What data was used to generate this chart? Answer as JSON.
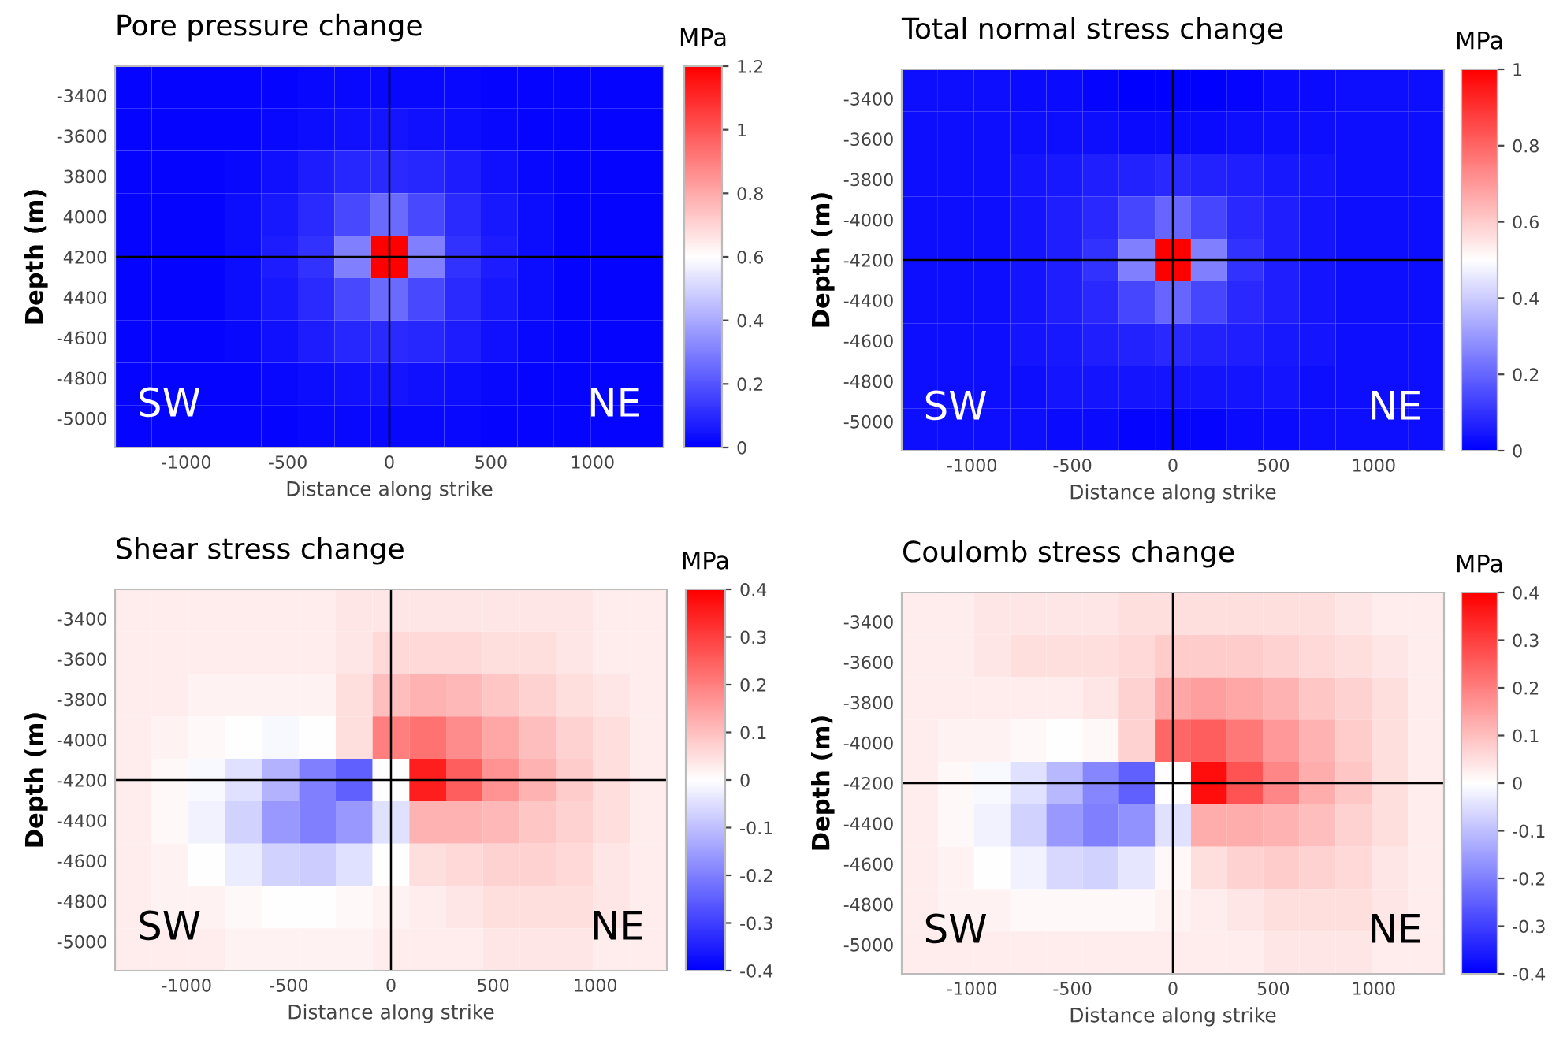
{
  "chart_data": [
    {
      "type": "heatmap",
      "title": "Pore pressure change",
      "xlabel": "Distance along strike",
      "ylabel": "Depth (m)",
      "clabel": "MPa",
      "x": [
        -1260,
        -1080,
        -900,
        -720,
        -540,
        -360,
        -180,
        0,
        180,
        360,
        540,
        720,
        900,
        1080,
        1260
      ],
      "y": [
        -3360,
        -3570,
        -3780,
        -3990,
        -4200,
        -4410,
        -4620,
        -4830,
        -5040
      ],
      "cells": [
        [
          0.01,
          0.01,
          0.01,
          0.01,
          0.01,
          0.02,
          0.02,
          0.02,
          0.02,
          0.02,
          0.01,
          0.01,
          0.01,
          0.01,
          0.01
        ],
        [
          0.01,
          0.01,
          0.01,
          0.01,
          0.02,
          0.03,
          0.04,
          0.05,
          0.04,
          0.03,
          0.02,
          0.01,
          0.01,
          0.01,
          0.01
        ],
        [
          0.01,
          0.01,
          0.01,
          0.02,
          0.04,
          0.07,
          0.09,
          0.1,
          0.09,
          0.07,
          0.04,
          0.02,
          0.01,
          0.01,
          0.01
        ],
        [
          0.01,
          0.01,
          0.01,
          0.03,
          0.06,
          0.1,
          0.17,
          0.25,
          0.17,
          0.1,
          0.06,
          0.03,
          0.01,
          0.01,
          0.01
        ],
        [
          0.01,
          0.01,
          0.01,
          0.03,
          0.07,
          0.12,
          0.3,
          1.2,
          0.3,
          0.12,
          0.07,
          0.03,
          0.01,
          0.01,
          0.01
        ],
        [
          0.01,
          0.01,
          0.01,
          0.03,
          0.06,
          0.1,
          0.17,
          0.25,
          0.17,
          0.1,
          0.06,
          0.03,
          0.01,
          0.01,
          0.01
        ],
        [
          0.01,
          0.01,
          0.01,
          0.02,
          0.04,
          0.07,
          0.09,
          0.1,
          0.09,
          0.07,
          0.04,
          0.02,
          0.01,
          0.01,
          0.01
        ],
        [
          0.01,
          0.01,
          0.01,
          0.01,
          0.02,
          0.03,
          0.04,
          0.05,
          0.04,
          0.03,
          0.02,
          0.01,
          0.01,
          0.01,
          0.01
        ],
        [
          0.01,
          0.01,
          0.01,
          0.01,
          0.01,
          0.02,
          0.02,
          0.02,
          0.02,
          0.02,
          0.01,
          0.01,
          0.01,
          0.01,
          0.01
        ]
      ],
      "xlim": [
        -1350,
        1350
      ],
      "ylim": [
        -5145,
        -3255
      ],
      "xticks": [
        -1000,
        -500,
        0,
        500,
        1000
      ],
      "yticks": [
        -3400,
        -3600,
        {
          "value": -3800,
          "label": "3800"
        },
        {
          "value": -4000,
          "label": "4000"
        },
        {
          "value": -4200,
          "label": "4200"
        },
        {
          "value": -4400,
          "label": "4400"
        },
        -4600,
        -4800,
        -5000
      ],
      "clim": [
        0,
        1.2
      ],
      "cticks": [
        0,
        0.2,
        0.4,
        0.6,
        0.8,
        1,
        1.2
      ],
      "ref_lines": [
        {
          "axis": "x",
          "value": 0,
          "color": "#000000"
        },
        {
          "axis": "y",
          "value": -4200,
          "color": "#000000"
        }
      ],
      "annotations": [
        "SW",
        "NE"
      ],
      "grid": false
    },
    {
      "type": "heatmap",
      "title": "Total normal stress change",
      "xlabel": "Distance along strike",
      "ylabel": "Depth (m)",
      "clabel": "MPa",
      "x": [
        -1260,
        -1080,
        -900,
        -720,
        -540,
        -360,
        -180,
        0,
        180,
        360,
        540,
        720,
        900,
        1080,
        1260
      ],
      "y": [
        -3360,
        -3570,
        -3780,
        -3990,
        -4200,
        -4410,
        -4620,
        -4830,
        -5040
      ],
      "cells": [
        [
          0.03,
          0.03,
          0.03,
          0.02,
          0.02,
          0.01,
          0.0,
          0.0,
          0.0,
          0.01,
          0.02,
          0.02,
          0.03,
          0.03,
          0.03
        ],
        [
          0.03,
          0.03,
          0.03,
          0.03,
          0.03,
          0.03,
          0.02,
          0.02,
          0.02,
          0.03,
          0.03,
          0.03,
          0.03,
          0.03,
          0.03
        ],
        [
          0.03,
          0.03,
          0.03,
          0.04,
          0.05,
          0.06,
          0.07,
          0.08,
          0.07,
          0.06,
          0.05,
          0.04,
          0.03,
          0.03,
          0.03
        ],
        [
          0.03,
          0.03,
          0.03,
          0.04,
          0.06,
          0.08,
          0.14,
          0.2,
          0.14,
          0.08,
          0.06,
          0.04,
          0.03,
          0.03,
          0.03
        ],
        [
          0.03,
          0.03,
          0.03,
          0.04,
          0.06,
          0.1,
          0.25,
          1.0,
          0.25,
          0.1,
          0.06,
          0.04,
          0.03,
          0.03,
          0.03
        ],
        [
          0.03,
          0.03,
          0.03,
          0.04,
          0.06,
          0.08,
          0.14,
          0.2,
          0.14,
          0.08,
          0.06,
          0.04,
          0.03,
          0.03,
          0.03
        ],
        [
          0.03,
          0.03,
          0.03,
          0.04,
          0.05,
          0.06,
          0.07,
          0.08,
          0.07,
          0.06,
          0.05,
          0.04,
          0.03,
          0.03,
          0.03
        ],
        [
          0.03,
          0.03,
          0.03,
          0.03,
          0.04,
          0.04,
          0.04,
          0.04,
          0.04,
          0.04,
          0.04,
          0.03,
          0.03,
          0.03,
          0.03
        ],
        [
          0.03,
          0.03,
          0.03,
          0.03,
          0.02,
          0.02,
          0.01,
          0.01,
          0.01,
          0.02,
          0.02,
          0.03,
          0.03,
          0.03,
          0.03
        ]
      ],
      "xlim": [
        -1350,
        1350
      ],
      "ylim": [
        -5145,
        -3255
      ],
      "xticks": [
        -1000,
        -500,
        0,
        500,
        1000
      ],
      "yticks": [
        -3400,
        -3600,
        -3800,
        -4000,
        -4200,
        -4400,
        -4600,
        -4800,
        -5000
      ],
      "clim": [
        0,
        1
      ],
      "cticks": [
        0,
        0.2,
        0.4,
        0.6,
        0.8,
        1
      ],
      "ref_lines": [
        {
          "axis": "x",
          "value": 0,
          "color": "#000000"
        },
        {
          "axis": "y",
          "value": -4200,
          "color": "#000000"
        }
      ],
      "annotations": [
        "SW",
        "NE"
      ],
      "grid": false
    },
    {
      "type": "heatmap",
      "title": "Shear stress change",
      "xlabel": "Distance along strike",
      "ylabel": "Depth (m)",
      "clabel": "MPa",
      "x": [
        -1260,
        -1080,
        -900,
        -720,
        -540,
        -360,
        -180,
        0,
        180,
        360,
        540,
        720,
        900,
        1080,
        1260
      ],
      "y": [
        -3360,
        -3570,
        -3780,
        -3990,
        -4200,
        -4410,
        -4620,
        -4830,
        -5040
      ],
      "cells": [
        [
          0.03,
          0.03,
          0.03,
          0.03,
          0.03,
          0.03,
          0.04,
          0.04,
          0.04,
          0.04,
          0.04,
          0.04,
          0.04,
          0.03,
          0.03
        ],
        [
          0.03,
          0.03,
          0.03,
          0.03,
          0.03,
          0.03,
          0.04,
          0.06,
          0.06,
          0.06,
          0.05,
          0.05,
          0.04,
          0.03,
          0.03
        ],
        [
          0.03,
          0.03,
          0.02,
          0.02,
          0.02,
          0.02,
          0.05,
          0.1,
          0.12,
          0.11,
          0.09,
          0.07,
          0.05,
          0.04,
          0.03
        ],
        [
          0.03,
          0.02,
          0.01,
          0.0,
          -0.01,
          0.0,
          0.05,
          0.2,
          0.22,
          0.18,
          0.14,
          0.1,
          0.07,
          0.05,
          0.03
        ],
        [
          0.03,
          0.01,
          -0.01,
          -0.05,
          -0.12,
          -0.2,
          -0.25,
          0.0,
          0.35,
          0.25,
          0.17,
          0.12,
          0.08,
          0.05,
          0.03
        ],
        [
          0.03,
          0.01,
          -0.02,
          -0.07,
          -0.16,
          -0.2,
          -0.16,
          -0.05,
          0.12,
          0.12,
          0.11,
          0.09,
          0.07,
          0.05,
          0.03
        ],
        [
          0.03,
          0.02,
          0.0,
          -0.03,
          -0.07,
          -0.08,
          -0.05,
          0.0,
          0.05,
          0.06,
          0.07,
          0.07,
          0.06,
          0.04,
          0.03
        ],
        [
          0.03,
          0.02,
          0.02,
          0.01,
          0.0,
          0.0,
          0.01,
          0.02,
          0.03,
          0.04,
          0.05,
          0.05,
          0.05,
          0.04,
          0.03
        ],
        [
          0.03,
          0.03,
          0.03,
          0.02,
          0.02,
          0.02,
          0.02,
          0.03,
          0.03,
          0.03,
          0.04,
          0.04,
          0.04,
          0.03,
          0.03
        ]
      ],
      "xlim": [
        -1350,
        1350
      ],
      "ylim": [
        -5145,
        -3255
      ],
      "xticks": [
        -1000,
        -500,
        0,
        500,
        1000
      ],
      "yticks": [
        -3400,
        -3600,
        -3800,
        -4000,
        -4200,
        -4400,
        -4600,
        -4800,
        -5000
      ],
      "clim": [
        -0.4,
        0.4
      ],
      "cticks": [
        -0.4,
        -0.3,
        -0.2,
        -0.1,
        0,
        0.1,
        0.2,
        0.3,
        0.4
      ],
      "ref_lines": [
        {
          "axis": "x",
          "value": 0,
          "color": "#000000"
        },
        {
          "axis": "y",
          "value": -4200,
          "color": "#000000"
        }
      ],
      "annotations": [
        "SW",
        "NE"
      ],
      "grid": false
    },
    {
      "type": "heatmap",
      "title": "Coulomb stress change",
      "xlabel": "Distance along strike",
      "ylabel": "Depth (m)",
      "clabel": "MPa",
      "x": [
        -1260,
        -1080,
        -900,
        -720,
        -540,
        -360,
        -180,
        0,
        180,
        360,
        540,
        720,
        900,
        1080,
        1260
      ],
      "y": [
        -3360,
        -3570,
        -3780,
        -3990,
        -4200,
        -4410,
        -4620,
        -4830,
        -5040
      ],
      "cells": [
        [
          0.03,
          0.03,
          0.04,
          0.04,
          0.04,
          0.04,
          0.05,
          0.05,
          0.05,
          0.05,
          0.05,
          0.05,
          0.04,
          0.03,
          0.03
        ],
        [
          0.03,
          0.03,
          0.04,
          0.05,
          0.05,
          0.05,
          0.06,
          0.08,
          0.08,
          0.08,
          0.07,
          0.06,
          0.05,
          0.04,
          0.03
        ],
        [
          0.03,
          0.03,
          0.03,
          0.03,
          0.03,
          0.04,
          0.07,
          0.14,
          0.15,
          0.14,
          0.12,
          0.09,
          0.07,
          0.05,
          0.03
        ],
        [
          0.03,
          0.02,
          0.02,
          0.01,
          0.0,
          0.01,
          0.07,
          0.24,
          0.25,
          0.21,
          0.16,
          0.12,
          0.08,
          0.05,
          0.03
        ],
        [
          0.03,
          0.01,
          -0.01,
          -0.05,
          -0.11,
          -0.19,
          -0.25,
          0.0,
          0.38,
          0.27,
          0.19,
          0.13,
          0.09,
          0.05,
          0.03
        ],
        [
          0.03,
          0.01,
          -0.02,
          -0.07,
          -0.16,
          -0.2,
          -0.17,
          -0.05,
          0.13,
          0.13,
          0.12,
          0.1,
          0.07,
          0.05,
          0.03
        ],
        [
          0.03,
          0.02,
          0.0,
          -0.02,
          -0.06,
          -0.07,
          -0.04,
          0.01,
          0.05,
          0.07,
          0.08,
          0.07,
          0.06,
          0.04,
          0.03
        ],
        [
          0.03,
          0.02,
          0.02,
          0.01,
          0.01,
          0.01,
          0.01,
          0.02,
          0.03,
          0.04,
          0.05,
          0.05,
          0.05,
          0.04,
          0.03
        ],
        [
          0.03,
          0.03,
          0.03,
          0.03,
          0.03,
          0.03,
          0.03,
          0.03,
          0.03,
          0.03,
          0.04,
          0.04,
          0.04,
          0.03,
          0.03
        ]
      ],
      "xlim": [
        -1350,
        1350
      ],
      "ylim": [
        -5145,
        -3255
      ],
      "xticks": [
        -1000,
        -500,
        0,
        500,
        1000
      ],
      "yticks": [
        -3400,
        -3600,
        -3800,
        -4000,
        -4200,
        -4400,
        -4600,
        -4800,
        -5000
      ],
      "clim": [
        -0.4,
        0.4
      ],
      "cticks": [
        -0.4,
        -0.3,
        -0.2,
        -0.1,
        0,
        0.1,
        0.2,
        0.3,
        0.4
      ],
      "ref_lines": [
        {
          "axis": "x",
          "value": 0,
          "color": "#000000"
        },
        {
          "axis": "y",
          "value": -4200,
          "color": "#000000"
        }
      ],
      "annotations": [
        "SW",
        "NE"
      ],
      "grid": false
    }
  ]
}
